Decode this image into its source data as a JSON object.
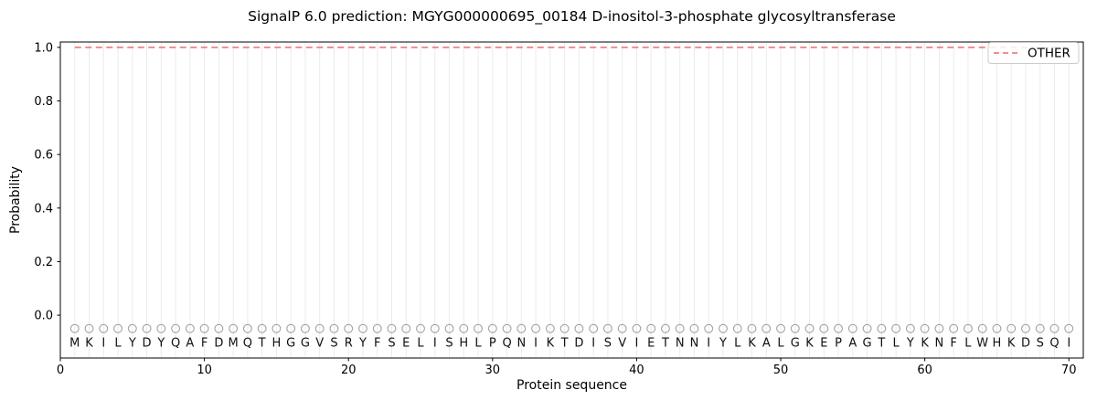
{
  "chart_data": {
    "type": "line",
    "title": "SignalP 6.0 prediction: MGYG000000695_00184 D-inositol-3-phosphate glycosyltransferase",
    "xlabel": "Protein sequence",
    "ylabel": "Probability",
    "xlim": [
      0,
      71
    ],
    "ylim": [
      -0.16,
      1.02
    ],
    "xticks": [
      0,
      10,
      20,
      30,
      40,
      50,
      60,
      70
    ],
    "xtick_labels": [
      "0",
      "10",
      "20",
      "30",
      "40",
      "50",
      "60",
      "70"
    ],
    "yticks": [
      0.0,
      0.2,
      0.4,
      0.6,
      0.8,
      1.0
    ],
    "ytick_labels": [
      "0.0",
      "0.2",
      "0.4",
      "0.6",
      "0.8",
      "1.0"
    ],
    "grid": {
      "vertical_per_residue": true,
      "color": "#ebebeb"
    },
    "legend": {
      "position": "upper right",
      "entries": [
        {
          "label": "OTHER",
          "color": "#f08080",
          "linestyle": "dashed"
        }
      ]
    },
    "series": [
      {
        "name": "OTHER",
        "color": "#f08080",
        "linestyle": "dashed",
        "linewidth": 1.8,
        "x": [
          1,
          2,
          3,
          4,
          5,
          6,
          7,
          8,
          9,
          10,
          11,
          12,
          13,
          14,
          15,
          16,
          17,
          18,
          19,
          20,
          21,
          22,
          23,
          24,
          25,
          26,
          27,
          28,
          29,
          30,
          31,
          32,
          33,
          34,
          35,
          36,
          37,
          38,
          39,
          40,
          41,
          42,
          43,
          44,
          45,
          46,
          47,
          48,
          49,
          50,
          51,
          52,
          53,
          54,
          55,
          56,
          57,
          58,
          59,
          60,
          61,
          62,
          63,
          64,
          65,
          66,
          67,
          68,
          69,
          70
        ],
        "values": [
          1.0,
          1.0,
          1.0,
          1.0,
          1.0,
          1.0,
          1.0,
          1.0,
          1.0,
          1.0,
          1.0,
          1.0,
          1.0,
          1.0,
          1.0,
          1.0,
          1.0,
          1.0,
          1.0,
          1.0,
          1.0,
          1.0,
          1.0,
          1.0,
          1.0,
          1.0,
          1.0,
          1.0,
          1.0,
          1.0,
          1.0,
          1.0,
          1.0,
          1.0,
          1.0,
          1.0,
          1.0,
          1.0,
          1.0,
          1.0,
          1.0,
          1.0,
          1.0,
          1.0,
          1.0,
          1.0,
          1.0,
          1.0,
          1.0,
          1.0,
          1.0,
          1.0,
          1.0,
          1.0,
          1.0,
          1.0,
          1.0,
          1.0,
          1.0,
          1.0,
          1.0,
          1.0,
          1.0,
          1.0,
          1.0,
          1.0,
          1.0,
          1.0,
          1.0,
          1.0
        ]
      }
    ],
    "sequence": "MKILYDYQAFDMQTHGGVSRYFSELISHLPQNIKTDISVIETNNIYLKALGKEPAGTLYKNFLWHKDSQI",
    "sequence_positions": {
      "start": 1,
      "end": 70
    },
    "residue_markers": {
      "symbol": "circle-open",
      "y": -0.05,
      "color": "#a3a3a3"
    },
    "residue_letter_y": -0.1
  },
  "colors": {
    "background": "#ffffff",
    "spine": "#000000",
    "tick_text": "#000000",
    "letter_text": "#111111",
    "legend_border": "#cccccc",
    "legend_background": "#ffffff"
  }
}
